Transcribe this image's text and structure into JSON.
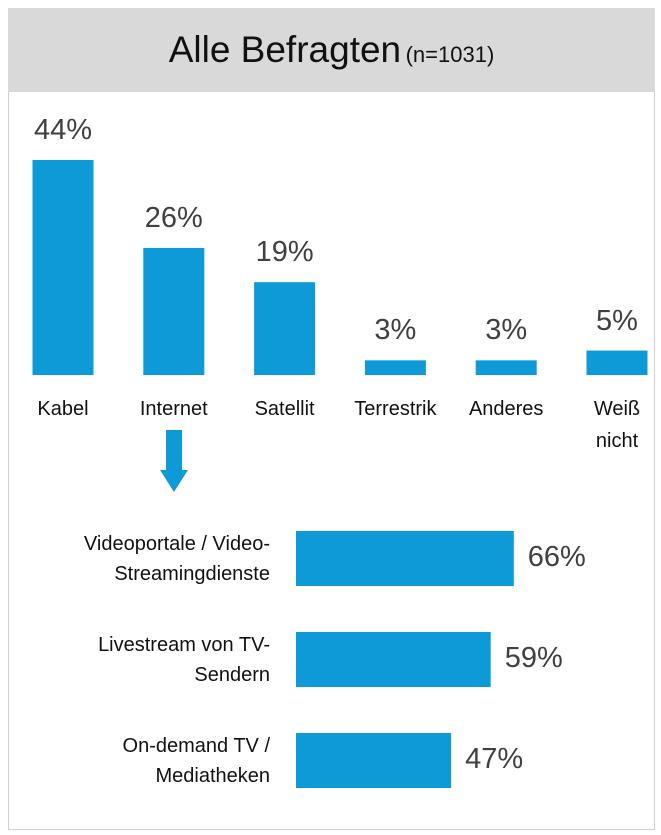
{
  "chart_data": [
    {
      "type": "bar",
      "title": "Alle Befragten",
      "subtitle": "(n=1031)",
      "categories": [
        "Kabel",
        "Internet",
        "Satellit",
        "Terrestrik",
        "Anderes",
        "Weiß nicht"
      ],
      "values": [
        44,
        26,
        19,
        3,
        3,
        5
      ],
      "value_labels": [
        "44%",
        "26%",
        "19%",
        "3%",
        "3%",
        "5%"
      ],
      "color": "#0e9ad7"
    },
    {
      "type": "hbar",
      "categories": [
        "Videoportale / Video-Streamingdienste",
        "Livestream von TV-Sendern",
        "On-demand TV / Mediatheken"
      ],
      "values": [
        66,
        59,
        47
      ],
      "value_labels": [
        "66%",
        "59%",
        "47%"
      ],
      "color": "#0e9ad7"
    }
  ]
}
